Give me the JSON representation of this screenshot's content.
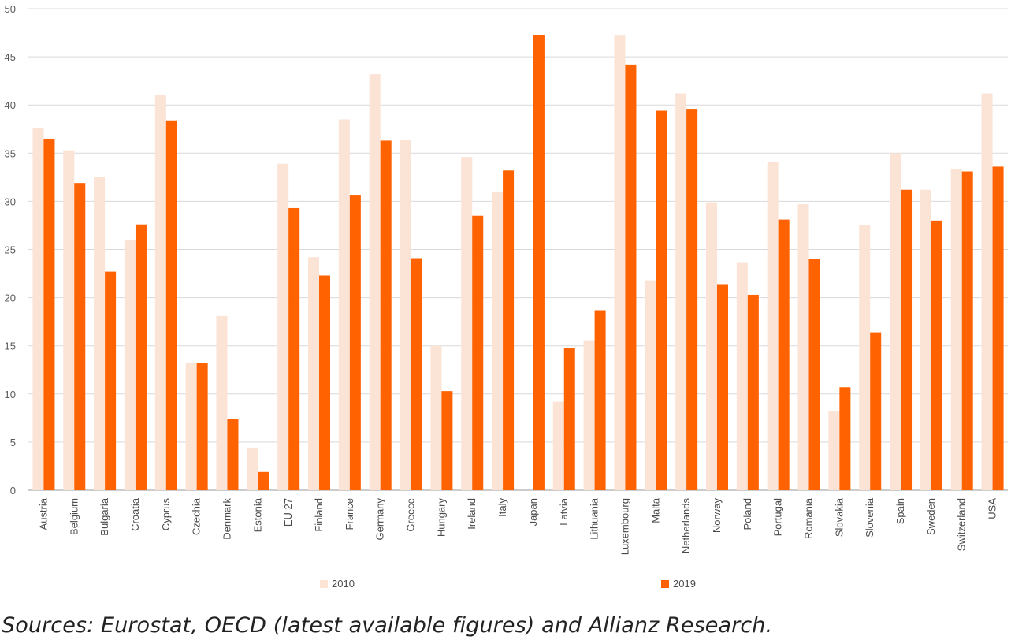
{
  "source_note": "Sources: Eurostat, OECD (latest available figures) and Allianz Research.",
  "chart_data": {
    "type": "bar",
    "title": "",
    "xlabel": "",
    "ylabel": "",
    "ylim": [
      0,
      50
    ],
    "yticks": [
      0,
      5,
      10,
      15,
      20,
      25,
      30,
      35,
      40,
      45,
      50
    ],
    "grid": true,
    "legend_position": "bottom",
    "categories": [
      "Austria",
      "Belgium",
      "Bulgaria",
      "Croatia",
      "Cyprus",
      "Czechia",
      "Denmark",
      "Estonia",
      "EU 27",
      "Finland",
      "France",
      "Germany",
      "Greece",
      "Hungary",
      "Ireland",
      "Italy",
      "Japan",
      "Latvia",
      "Lithuania",
      "Luxembourg",
      "Malta",
      "Netherlands",
      "Norway",
      "Poland",
      "Portugal",
      "Romania",
      "Slovakia",
      "Slovenia",
      "Spain",
      "Sweden",
      "Switzerland",
      "USA"
    ],
    "series": [
      {
        "name": "2010",
        "color": "#fbe3d5",
        "values": [
          37.6,
          35.3,
          32.5,
          26.0,
          41.0,
          13.2,
          18.1,
          4.4,
          33.9,
          24.2,
          38.5,
          43.2,
          36.4,
          15.0,
          34.6,
          31.0,
          null,
          9.2,
          15.5,
          47.2,
          21.8,
          41.2,
          29.9,
          23.6,
          34.1,
          29.7,
          8.2,
          27.5,
          35.0,
          31.2,
          33.3,
          41.2
        ]
      },
      {
        "name": "2019",
        "color": "#ff6200",
        "values": [
          36.5,
          31.9,
          22.7,
          27.6,
          38.4,
          13.2,
          7.4,
          1.9,
          29.3,
          22.3,
          30.6,
          36.3,
          24.1,
          10.3,
          28.5,
          33.2,
          47.3,
          14.8,
          18.7,
          44.2,
          39.4,
          39.6,
          21.4,
          20.3,
          28.1,
          24.0,
          10.7,
          16.4,
          31.2,
          28.0,
          33.1,
          33.6
        ]
      }
    ]
  }
}
